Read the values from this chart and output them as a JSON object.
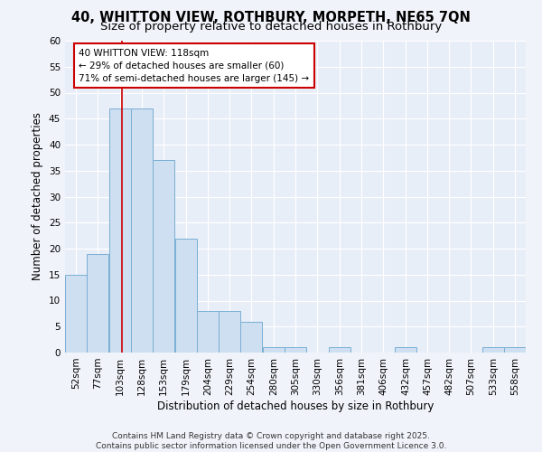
{
  "title1": "40, WHITTON VIEW, ROTHBURY, MORPETH, NE65 7QN",
  "title2": "Size of property relative to detached houses in Rothbury",
  "xlabel": "Distribution of detached houses by size in Rothbury",
  "ylabel": "Number of detached properties",
  "bins": [
    52,
    77,
    103,
    128,
    153,
    179,
    204,
    229,
    254,
    280,
    305,
    330,
    356,
    381,
    406,
    432,
    457,
    482,
    507,
    533,
    558
  ],
  "values": [
    15,
    19,
    47,
    47,
    37,
    22,
    8,
    8,
    6,
    1,
    1,
    0,
    1,
    0,
    0,
    1,
    0,
    0,
    0,
    1,
    1
  ],
  "bar_facecolor": "#cddff0",
  "bar_edgecolor": "#7aafd4",
  "red_line_x": 118,
  "annotation_line1": "40 WHITTON VIEW: 118sqm",
  "annotation_line2": "← 29% of detached houses are smaller (60)",
  "annotation_line3": "71% of semi-detached houses are larger (145) →",
  "annotation_box_edgecolor": "#cc0000",
  "annotation_box_facecolor": "#ffffff",
  "ylim": [
    0,
    60
  ],
  "yticks": [
    0,
    5,
    10,
    15,
    20,
    25,
    30,
    35,
    40,
    45,
    50,
    55,
    60
  ],
  "background_color": "#f0f4fa",
  "plot_background": "#e8eef8",
  "grid_color": "#ffffff",
  "footer_text": "Contains HM Land Registry data © Crown copyright and database right 2025.\nContains public sector information licensed under the Open Government Licence 3.0.",
  "title_fontsize": 10.5,
  "subtitle_fontsize": 9.5,
  "axis_label_fontsize": 8.5,
  "tick_fontsize": 7.5,
  "annotation_fontsize": 7.5,
  "footer_fontsize": 6.5
}
